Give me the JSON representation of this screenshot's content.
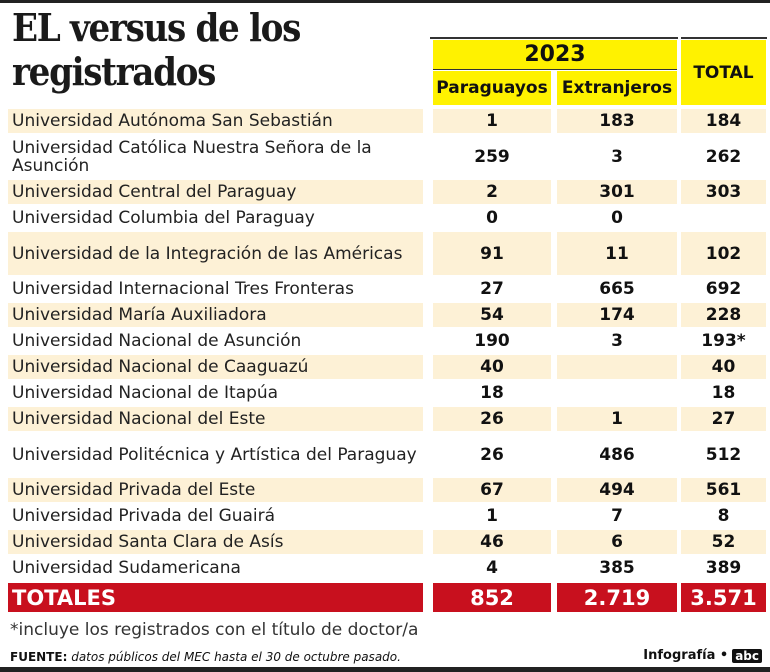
{
  "title_line1": "EL versus de los",
  "title_line2": "registrados",
  "header": {
    "year": "2023",
    "col1": "Paraguayos",
    "col2": "Extranjeros",
    "total": "TOTAL"
  },
  "rows": [
    {
      "name": "Universidad Autónoma San Sebastián",
      "py": "1",
      "ex": "183",
      "total": "184"
    },
    {
      "name": "Universidad Católica Nuestra Señora de la Asunción",
      "py": "259",
      "ex": "3",
      "total": "262"
    },
    {
      "name": "Universidad Central del Paraguay",
      "py": "2",
      "ex": "301",
      "total": "303"
    },
    {
      "name": "Universidad Columbia del Paraguay",
      "py": "0",
      "ex": "0",
      "total": ""
    },
    {
      "name": "Universidad de la Integración de las Américas",
      "py": "91",
      "ex": "11",
      "total": "102"
    },
    {
      "name": "Universidad Internacional Tres Fronteras",
      "py": "27",
      "ex": "665",
      "total": "692"
    },
    {
      "name": "Universidad María Auxiliadora",
      "py": "54",
      "ex": "174",
      "total": "228"
    },
    {
      "name": "Universidad Nacional de Asunción",
      "py": "190",
      "ex": "3",
      "total": "193*"
    },
    {
      "name": "Universidad Nacional de Caaguazú",
      "py": "40",
      "ex": "",
      "total": "40"
    },
    {
      "name": "Universidad Nacional de Itapúa",
      "py": "18",
      "ex": "",
      "total": "18"
    },
    {
      "name": "Universidad Nacional del Este",
      "py": "26",
      "ex": "1",
      "total": "27"
    },
    {
      "name": "Universidad Politécnica y Artística del Paraguay",
      "py": "26",
      "ex": "486",
      "total": "512"
    },
    {
      "name": "Universidad Privada del Este",
      "py": "67",
      "ex": "494",
      "total": "561"
    },
    {
      "name": "Universidad Privada del Guairá",
      "py": "1",
      "ex": "7",
      "total": "8"
    },
    {
      "name": "Universidad Santa Clara de Asís",
      "py": "46",
      "ex": "6",
      "total": "52"
    },
    {
      "name": "Universidad Sudamericana",
      "py": "4",
      "ex": "385",
      "total": "389"
    }
  ],
  "totals": {
    "label": "TOTALES",
    "py": "852",
    "ex": "2.719",
    "total": "3.571"
  },
  "note": "*incluye los registrados con el título de doctor/a",
  "source_label": "FUENTE:",
  "source_text": "datos públicos del MEC hasta el 30 de octubre pasado.",
  "credit": "Infografía •",
  "logo": "abc"
}
